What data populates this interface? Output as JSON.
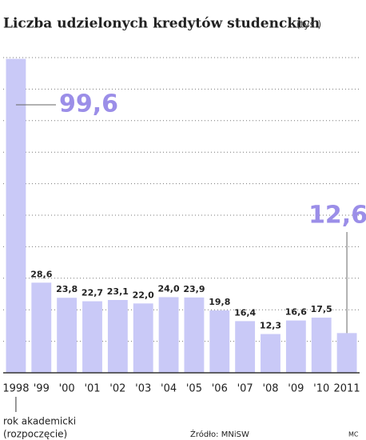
{
  "chart_data": {
    "type": "bar",
    "title": "Liczba udzielonych kredytów studenckich",
    "unit": "(tys.)",
    "categories": [
      "1998",
      "'99",
      "'00",
      "'01",
      "'02",
      "'03",
      "'04",
      "'05",
      "'06",
      "'07",
      "'08",
      "'09",
      "'10",
      "2011"
    ],
    "values": [
      99.6,
      28.6,
      23.8,
      22.7,
      23.1,
      22.0,
      24.0,
      23.9,
      19.8,
      16.4,
      12.3,
      16.6,
      17.5,
      12.6
    ],
    "value_labels": [
      "99,6",
      "28,6",
      "23,8",
      "22,7",
      "23,1",
      "22,0",
      "24,0",
      "23,9",
      "19,8",
      "16,4",
      "12,3",
      "16,6",
      "17,5",
      "12,6"
    ],
    "color": "#c9c9f7",
    "highlight_color": "#9b8ee8",
    "ylim": [
      0,
      100
    ],
    "yticks": [
      10,
      20,
      30,
      40,
      50,
      60,
      70,
      80,
      90,
      100
    ],
    "grid": true,
    "x_note": [
      "rok akademicki",
      "(rozpoczęcie)"
    ],
    "source": "Źródło: MNiSW",
    "credit": "MC"
  }
}
